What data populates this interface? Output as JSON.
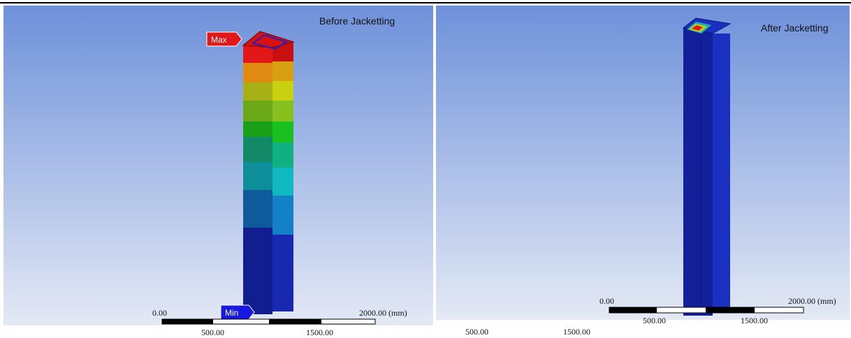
{
  "panels": [
    {
      "title": "Before Jacketting",
      "max_label": "Max",
      "min_label": "Min",
      "scale": {
        "start": "0.00",
        "end": "2000.00 (mm)",
        "mid_left": "500.00",
        "mid_right": "1500.00"
      }
    },
    {
      "title": "After Jacketting",
      "scale": {
        "start": "0.00",
        "end": "2000.00 (mm)",
        "mid_left": "500.00",
        "mid_right": "1500.00"
      }
    }
  ],
  "extra_labels": [
    "500.00",
    "1500.00"
  ]
}
